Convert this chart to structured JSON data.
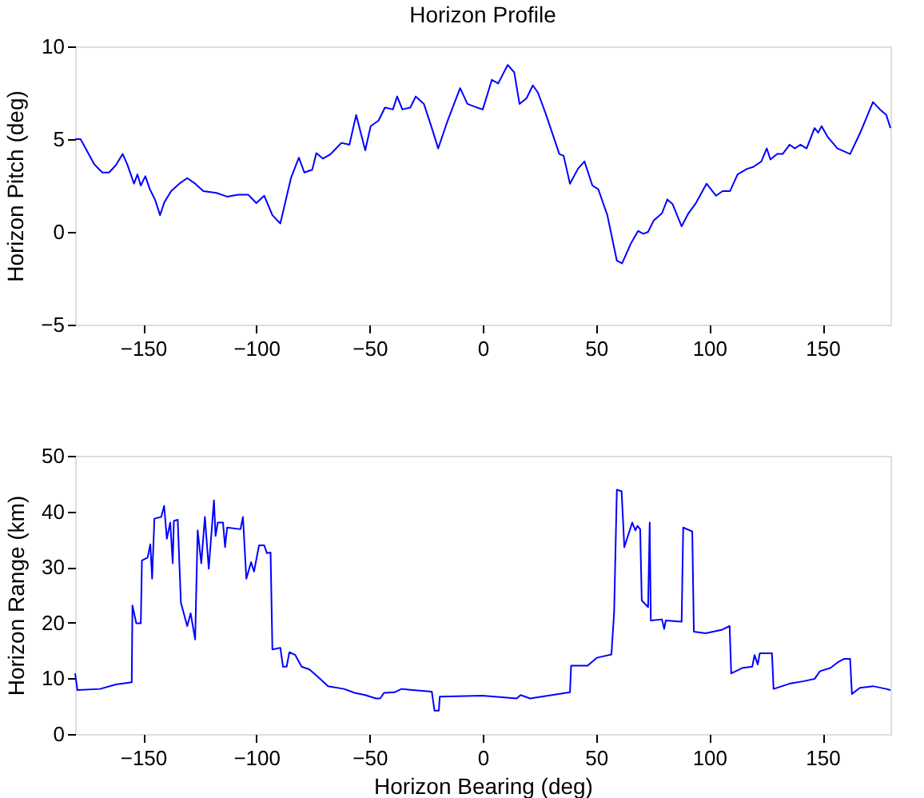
{
  "chart_data": [
    {
      "type": "line",
      "title": "Horizon Profile",
      "ylabel": "Horizon Pitch (deg)",
      "xlim": [
        -180,
        180
      ],
      "xticks": [
        -150,
        -100,
        -50,
        0,
        50,
        100,
        150
      ],
      "ylim": [
        -5,
        10
      ],
      "yticks": [
        -5,
        0,
        5,
        10
      ],
      "grid": false,
      "marker": "none",
      "line_style": "solid",
      "series": [
        {
          "color": "#0000ff",
          "x": [
            -180,
            -177.6,
            -171.6,
            -168,
            -165,
            -162,
            -159,
            -157,
            -154,
            -152.5,
            -151,
            -149,
            -147,
            -144.6,
            -142.5,
            -140.6,
            -137.6,
            -134,
            -130.5,
            -127,
            -123.4,
            -117.6,
            -112.9,
            -108,
            -103.5,
            -100,
            -96.5,
            -92.9,
            -89.4,
            -84.7,
            -81.2,
            -78.8,
            -75.3,
            -73.5,
            -70.6,
            -67.1,
            -62.4,
            -58.9,
            -55.9,
            -51.9,
            -49.5,
            -46,
            -43.2,
            -39.7,
            -37.8,
            -35.5,
            -32,
            -29.6,
            -26,
            -22.5,
            -19.7,
            -15.5,
            -10,
            -6.8,
            -2.5,
            0,
            4,
            6.8,
            11,
            13.9,
            16.2,
            19.3,
            22.1,
            24.4,
            28,
            33.8,
            35.7,
            38.5,
            42,
            44.9,
            48.4,
            51,
            55,
            59.2,
            61.5,
            65.5,
            68.6,
            70.9,
            73,
            75.4,
            79.1,
            81.5,
            83.8,
            87.8,
            90.8,
            94.1,
            98.8,
            103,
            105.9,
            109.2,
            112.5,
            116.7,
            119.5,
            123,
            125.4,
            127,
            130,
            132.4,
            135.5,
            137.8,
            140.2,
            143,
            146.5,
            148.1,
            149.6,
            152.4,
            156.6,
            162.2,
            166.5,
            172.3,
            175.4,
            178.2,
            180
          ],
          "values": [
            5.0,
            5.0,
            3.65,
            3.2,
            3.2,
            3.6,
            4.2,
            3.65,
            2.6,
            3.1,
            2.5,
            3.0,
            2.3,
            1.7,
            0.9,
            1.6,
            2.2,
            2.6,
            2.9,
            2.6,
            2.2,
            2.1,
            1.9,
            2.0,
            2.0,
            1.55,
            1.95,
            0.9,
            0.45,
            2.9,
            4.0,
            3.2,
            3.35,
            4.25,
            3.95,
            4.2,
            4.8,
            4.7,
            6.3,
            4.4,
            5.7,
            6.0,
            6.7,
            6.6,
            7.3,
            6.6,
            6.7,
            7.3,
            6.9,
            5.6,
            4.5,
            6.0,
            7.75,
            6.9,
            6.7,
            6.6,
            8.2,
            8.0,
            9.0,
            8.6,
            6.9,
            7.2,
            7.9,
            7.5,
            6.3,
            4.2,
            4.1,
            2.6,
            3.4,
            3.8,
            2.5,
            2.3,
            0.9,
            -1.55,
            -1.7,
            -0.6,
            0.05,
            -0.1,
            0,
            0.6,
            1.0,
            1.75,
            1.5,
            0.3,
            1.0,
            1.55,
            2.6,
            1.95,
            2.2,
            2.2,
            3.1,
            3.4,
            3.5,
            3.8,
            4.5,
            3.9,
            4.2,
            4.2,
            4.7,
            4.5,
            4.7,
            4.5,
            5.6,
            5.35,
            5.7,
            5.1,
            4.5,
            4.2,
            5.3,
            7.0,
            6.6,
            6.3,
            5.6
          ]
        }
      ]
    },
    {
      "type": "line",
      "xlabel": "Horizon Bearing (deg)",
      "ylabel": "Horizon Range (km)",
      "xlim": [
        -180,
        180
      ],
      "xticks": [
        -150,
        -100,
        -50,
        0,
        50,
        100,
        150
      ],
      "ylim": [
        0,
        50
      ],
      "yticks": [
        0,
        10,
        20,
        30,
        40,
        50
      ],
      "grid": false,
      "marker": "none",
      "line_style": "solid",
      "series": [
        {
          "color": "#0000ff",
          "x": [
            -180,
            -179,
            -169,
            -162,
            -155,
            -154.7,
            -153,
            -151,
            -150.5,
            -148,
            -146.8,
            -146,
            -145,
            -142,
            -140.7,
            -139.5,
            -138,
            -136.9,
            -136.4,
            -134.7,
            -133.3,
            -130.5,
            -129,
            -127,
            -125.9,
            -124.3,
            -122.7,
            -121,
            -118.7,
            -118,
            -117,
            -114.7,
            -113.8,
            -112.9,
            -107,
            -105.9,
            -104.4,
            -102.3,
            -101,
            -98.8,
            -96.5,
            -95.3,
            -93.7,
            -92.9,
            -89.4,
            -88.2,
            -86.6,
            -85.4,
            -82.8,
            -80,
            -76.5,
            -72.9,
            -68.3,
            -61.2,
            -56.6,
            -51.9,
            -47.2,
            -45.3,
            -43.6,
            -39,
            -35.9,
            -22.5,
            -21.3,
            -19.4,
            -19,
            -0.2,
            15,
            16.7,
            20.9,
            38.5,
            39,
            46.3,
            50.3,
            56.8,
            58,
            59.2,
            61.3,
            62.5,
            66,
            67.4,
            68.3,
            69.5,
            70.2,
            73,
            73.7,
            74.2,
            79.1,
            80.1,
            80.8,
            87.8,
            88.5,
            92.5,
            93.2,
            98.4,
            105.4,
            109,
            109.7,
            114.8,
            119,
            120,
            121.4,
            122.3,
            127.7,
            128.4,
            135.9,
            141.8,
            146.5,
            148.9,
            153.6,
            157.1,
            159.4,
            162.2,
            163,
            166.5,
            172.3,
            178.2,
            180
          ],
          "values": [
            10.9,
            7.9,
            8.1,
            8.9,
            9.3,
            23.1,
            19.9,
            19.9,
            31.2,
            31.7,
            34.1,
            27.9,
            38.7,
            39,
            41,
            35.1,
            38,
            30.7,
            38.3,
            38.5,
            23.6,
            19.4,
            21.7,
            17,
            36.6,
            30.7,
            39,
            29.7,
            42,
            35.6,
            38,
            38,
            33.6,
            37.1,
            36.8,
            39,
            27.9,
            30.9,
            29.2,
            33.9,
            33.9,
            32.5,
            32.6,
            15.2,
            15.5,
            12.1,
            12.1,
            14.7,
            14.2,
            12.1,
            11.6,
            10.3,
            8.6,
            8.1,
            7.4,
            7.0,
            6.4,
            6.4,
            7.4,
            7.5,
            8.1,
            7.6,
            4.2,
            4.2,
            6.7,
            6.9,
            6.4,
            7.0,
            6.4,
            7.5,
            12.3,
            12.3,
            13.7,
            14.3,
            21.9,
            43.9,
            43.6,
            33.6,
            38,
            36.6,
            37.4,
            36.8,
            24,
            22.8,
            38,
            20.4,
            20.6,
            18.9,
            20.4,
            20.2,
            37.1,
            36.4,
            18.4,
            18.1,
            18.7,
            19.4,
            10.9,
            11.9,
            12.1,
            14.2,
            12.5,
            14.5,
            14.5,
            8.1,
            9.1,
            9.5,
            9.9,
            11.3,
            11.9,
            13.0,
            13.5,
            13.5,
            7.2,
            8.3,
            8.6,
            8.1,
            7.9
          ]
        }
      ]
    }
  ]
}
